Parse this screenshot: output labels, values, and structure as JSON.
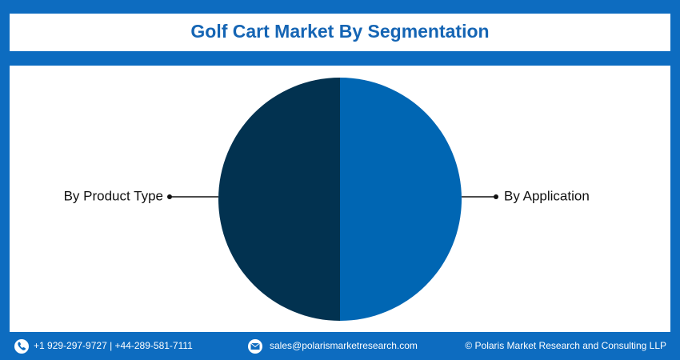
{
  "chart_data": {
    "type": "pie",
    "title": "Golf Cart Market By Segmentation",
    "categories": [
      "By Application",
      "By Product Type"
    ],
    "values": [
      50,
      50
    ],
    "colors": [
      "#0066b3",
      "#023250"
    ]
  },
  "footer": {
    "phone": "+1 929-297-9727 | +44-289-581-7111",
    "email": "sales@polarismarketresearch.com",
    "copyright": "© Polaris Market Research and Consulting LLP"
  }
}
